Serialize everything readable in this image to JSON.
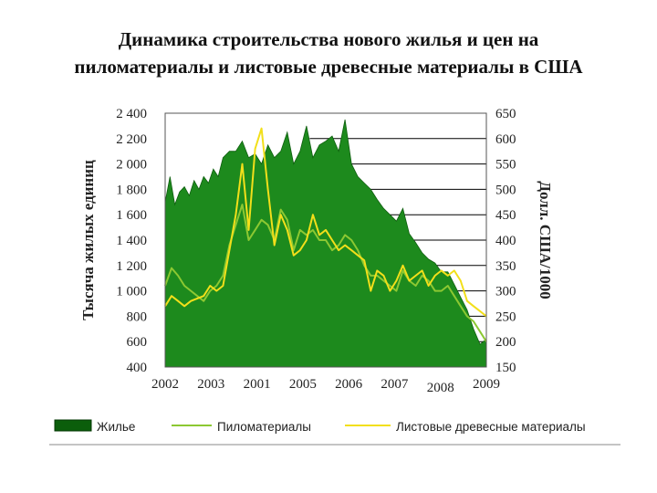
{
  "title_line1": "Динамика строительства нового жилья и цен на",
  "title_line2": "пиломатериалы и листовые древесные материалы в США",
  "colors": {
    "housing": "#1d8a1d",
    "lumber": "#8cc832",
    "panels": "#f2df1a",
    "grid": "#000000"
  },
  "chart_data": {
    "type": "area",
    "title": "Динамика строительства нового жилья и цен на пиломатериалы и листовые древесные материалы в США",
    "ylabel_left": "Тысяча жилых единиц",
    "ylabel_right": "Долл. США/1000",
    "ylim_left": [
      400,
      2400
    ],
    "ylim_right": [
      150,
      650
    ],
    "yticks_left": [
      "2 400",
      "2 200",
      "2 000",
      "1 800",
      "1 600",
      "1 400",
      "1 200",
      "1 000",
      "800",
      "600",
      "400"
    ],
    "yticks_right": [
      "650",
      "600",
      "550",
      "500",
      "450",
      "400",
      "350",
      "300",
      "250",
      "200",
      "150"
    ],
    "xticks": [
      "2002",
      "2003",
      "2001",
      "2005",
      "2006",
      "2007",
      "2008",
      "2009"
    ],
    "xlim": [
      0,
      1
    ],
    "grid": "horizontal, right half",
    "legend_position": "bottom",
    "series": [
      {
        "name": "Жилье",
        "kind": "area",
        "x": [
          0,
          0.015,
          0.03,
          0.045,
          0.06,
          0.075,
          0.09,
          0.105,
          0.12,
          0.135,
          0.15,
          0.165,
          0.18,
          0.2,
          0.22,
          0.24,
          0.26,
          0.28,
          0.3,
          0.32,
          0.34,
          0.36,
          0.38,
          0.4,
          0.42,
          0.44,
          0.46,
          0.48,
          0.5,
          0.52,
          0.54,
          0.56,
          0.58,
          0.6,
          0.62,
          0.64,
          0.66,
          0.68,
          0.7,
          0.72,
          0.74,
          0.76,
          0.78,
          0.8,
          0.82,
          0.84,
          0.86,
          0.88,
          0.9,
          0.92,
          0.94,
          0.96,
          0.98,
          1.0
        ],
        "values": [
          1700,
          1900,
          1680,
          1780,
          1820,
          1750,
          1870,
          1800,
          1900,
          1850,
          1960,
          1900,
          2050,
          2100,
          2100,
          2180,
          2050,
          2080,
          2000,
          2150,
          2050,
          2100,
          2250,
          2000,
          2100,
          2300,
          2050,
          2150,
          2180,
          2220,
          2100,
          2350,
          2000,
          1900,
          1850,
          1800,
          1720,
          1650,
          1600,
          1550,
          1650,
          1450,
          1380,
          1300,
          1250,
          1220,
          1150,
          1150,
          1050,
          950,
          850,
          700,
          580,
          620
        ]
      },
      {
        "name": "Пиломатериалы",
        "kind": "line",
        "x": [
          0,
          0.02,
          0.04,
          0.06,
          0.08,
          0.1,
          0.12,
          0.14,
          0.16,
          0.18,
          0.2,
          0.22,
          0.24,
          0.26,
          0.28,
          0.3,
          0.32,
          0.34,
          0.36,
          0.38,
          0.4,
          0.42,
          0.44,
          0.46,
          0.48,
          0.5,
          0.52,
          0.54,
          0.56,
          0.58,
          0.6,
          0.62,
          0.64,
          0.66,
          0.68,
          0.7,
          0.72,
          0.74,
          0.76,
          0.78,
          0.8,
          0.82,
          0.84,
          0.86,
          0.88,
          0.9,
          0.92,
          0.94,
          0.96,
          0.98,
          1.0
        ],
        "values": [
          310,
          345,
          330,
          310,
          300,
          290,
          280,
          300,
          310,
          330,
          390,
          430,
          470,
          400,
          420,
          440,
          430,
          400,
          460,
          440,
          380,
          420,
          410,
          420,
          400,
          400,
          380,
          390,
          410,
          400,
          380,
          350,
          330,
          330,
          320,
          310,
          300,
          340,
          320,
          310,
          330,
          320,
          300,
          300,
          310,
          290,
          270,
          250,
          240,
          220,
          200
        ]
      },
      {
        "name": "Листовые древесные материалы",
        "kind": "line",
        "x": [
          0,
          0.02,
          0.04,
          0.06,
          0.08,
          0.1,
          0.12,
          0.14,
          0.16,
          0.18,
          0.2,
          0.22,
          0.24,
          0.26,
          0.28,
          0.3,
          0.32,
          0.34,
          0.36,
          0.38,
          0.4,
          0.42,
          0.44,
          0.46,
          0.48,
          0.5,
          0.52,
          0.54,
          0.56,
          0.58,
          0.6,
          0.62,
          0.64,
          0.66,
          0.68,
          0.7,
          0.72,
          0.74,
          0.76,
          0.78,
          0.8,
          0.82,
          0.84,
          0.86,
          0.88,
          0.9,
          0.92,
          0.94,
          0.96,
          0.98,
          1.0
        ],
        "values": [
          270,
          290,
          280,
          270,
          280,
          285,
          290,
          310,
          300,
          310,
          380,
          450,
          550,
          420,
          580,
          620,
          500,
          390,
          450,
          420,
          370,
          380,
          400,
          450,
          410,
          420,
          400,
          380,
          390,
          380,
          370,
          360,
          300,
          340,
          330,
          300,
          320,
          350,
          320,
          330,
          340,
          310,
          330,
          340,
          330,
          340,
          320,
          280,
          270,
          260,
          250
        ]
      }
    ]
  },
  "legend": [
    {
      "label": "Жилье",
      "kind": "box"
    },
    {
      "label": "Пиломатериалы",
      "kind": "line"
    },
    {
      "label": "Листовые древесные материалы",
      "kind": "line"
    }
  ]
}
